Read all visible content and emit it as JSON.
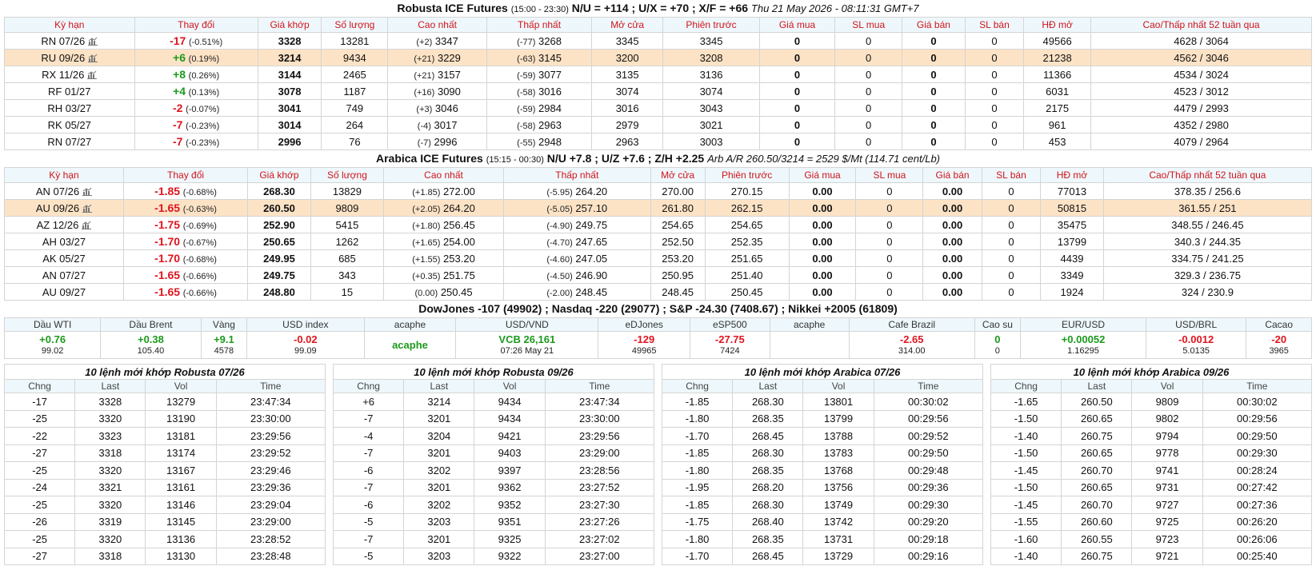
{
  "robusta": {
    "title": "Robusta ICE Futures",
    "hours": "(15:00 - 23:30)",
    "spreads": "N/U = +114 ; U/X = +70 ; X/F = +66",
    "timestamp": "Thu 21 May 2026 - 08:11:31 GMT+7",
    "headers": [
      "Kỳ hạn",
      "Thay đổi",
      "Giá khớp",
      "Số lượng",
      "Cao nhất",
      "Thấp nhất",
      "Mở cửa",
      "Phiên trước",
      "Giá mua",
      "SL mua",
      "Giá bán",
      "SL bán",
      "HĐ mở",
      "Cao/Thấp nhất 52 tuần qua"
    ],
    "rows": [
      [
        "RN 07/26",
        "-17",
        "(-0.51%)",
        "3328",
        "13281",
        "(+2)",
        "3347",
        "(-77)",
        "3268",
        "3345",
        "3345",
        "0",
        "0",
        "0",
        "0",
        "49566",
        "4628 / 3064"
      ],
      [
        "RU 09/26",
        "+6",
        "(0.19%)",
        "3214",
        "9434",
        "(+21)",
        "3229",
        "(-63)",
        "3145",
        "3200",
        "3208",
        "0",
        "0",
        "0",
        "0",
        "21238",
        "4562 / 3046"
      ],
      [
        "RX 11/26",
        "+8",
        "(0.26%)",
        "3144",
        "2465",
        "(+21)",
        "3157",
        "(-59)",
        "3077",
        "3135",
        "3136",
        "0",
        "0",
        "0",
        "0",
        "11366",
        "4534 / 3024"
      ],
      [
        "RF 01/27",
        "+4",
        "(0.13%)",
        "3078",
        "1187",
        "(+16)",
        "3090",
        "(-58)",
        "3016",
        "3074",
        "3074",
        "0",
        "0",
        "0",
        "0",
        "6031",
        "4523 / 3012"
      ],
      [
        "RH 03/27",
        "-2",
        "(-0.07%)",
        "3041",
        "749",
        "(+3)",
        "3046",
        "(-59)",
        "2984",
        "3016",
        "3043",
        "0",
        "0",
        "0",
        "0",
        "2175",
        "4479 / 2993"
      ],
      [
        "RK 05/27",
        "-7",
        "(-0.23%)",
        "3014",
        "264",
        "(-4)",
        "3017",
        "(-58)",
        "2963",
        "2979",
        "3021",
        "0",
        "0",
        "0",
        "0",
        "961",
        "4352 / 2980"
      ],
      [
        "RN 07/27",
        "-7",
        "(-0.23%)",
        "2996",
        "76",
        "(-7)",
        "2996",
        "(-55)",
        "2948",
        "2963",
        "3003",
        "0",
        "0",
        "0",
        "0",
        "453",
        "4079 / 2964"
      ]
    ],
    "highlight_row": 1,
    "icon_rows": [
      0,
      1,
      2
    ]
  },
  "arabica": {
    "title": "Arabica ICE Futures",
    "hours": "(15:15 - 00:30)",
    "spreads": "N/U +7.8 ; U/Z +7.6 ; Z/H +2.25",
    "arb": "Arb A/R 260.50/3214 = 2529 $/Mt (114.71 cent/Lb)",
    "headers": [
      "Kỳ hạn",
      "Thay đổi",
      "Giá khớp",
      "Số lượng",
      "Cao nhất",
      "Thấp nhất",
      "Mở cửa",
      "Phiên trước",
      "Giá mua",
      "SL mua",
      "Giá bán",
      "SL bán",
      "HĐ mở",
      "Cao/Thấp nhất 52 tuần qua"
    ],
    "rows": [
      [
        "AN 07/26",
        "-1.85",
        "(-0.68%)",
        "268.30",
        "13829",
        "(+1.85)",
        "272.00",
        "(-5.95)",
        "264.20",
        "270.00",
        "270.15",
        "0.00",
        "0",
        "0.00",
        "0",
        "77013",
        "378.35 / 256.6"
      ],
      [
        "AU 09/26",
        "-1.65",
        "(-0.63%)",
        "260.50",
        "9809",
        "(+2.05)",
        "264.20",
        "(-5.05)",
        "257.10",
        "261.80",
        "262.15",
        "0.00",
        "0",
        "0.00",
        "0",
        "50815",
        "361.55 / 251"
      ],
      [
        "AZ 12/26",
        "-1.75",
        "(-0.69%)",
        "252.90",
        "5415",
        "(+1.80)",
        "256.45",
        "(-4.90)",
        "249.75",
        "254.65",
        "254.65",
        "0.00",
        "0",
        "0.00",
        "0",
        "35475",
        "348.55 / 246.45"
      ],
      [
        "AH 03/27",
        "-1.70",
        "(-0.67%)",
        "250.65",
        "1262",
        "(+1.65)",
        "254.00",
        "(-4.70)",
        "247.65",
        "252.50",
        "252.35",
        "0.00",
        "0",
        "0.00",
        "0",
        "13799",
        "340.3 / 244.35"
      ],
      [
        "AK 05/27",
        "-1.70",
        "(-0.68%)",
        "249.95",
        "685",
        "(+1.55)",
        "253.20",
        "(-4.60)",
        "247.05",
        "253.20",
        "251.65",
        "0.00",
        "0",
        "0.00",
        "0",
        "4439",
        "334.75 / 241.25"
      ],
      [
        "AN 07/27",
        "-1.65",
        "(-0.66%)",
        "249.75",
        "343",
        "(+0.35)",
        "251.75",
        "(-4.50)",
        "246.90",
        "250.95",
        "251.40",
        "0.00",
        "0",
        "0.00",
        "0",
        "3349",
        "329.3 / 236.75"
      ],
      [
        "AU 09/27",
        "-1.65",
        "(-0.66%)",
        "248.80",
        "15",
        "(0.00)",
        "250.45",
        "(-2.00)",
        "248.45",
        "248.45",
        "250.45",
        "0.00",
        "0",
        "0.00",
        "0",
        "1924",
        "324 / 230.9"
      ]
    ],
    "highlight_row": 1,
    "icon_rows": [
      0,
      1,
      2
    ]
  },
  "indices": "DowJones -107 (49902) ; Nasdaq -220 (29077) ; S&P -24.30 (7408.67) ; Nikkei +2005 (61809)",
  "markets": [
    {
      "label": "Dầu WTI",
      "main": "+0.76",
      "sub": "99.02"
    },
    {
      "label": "Dầu Brent",
      "main": "+0.38",
      "sub": "105.40"
    },
    {
      "label": "Vàng",
      "main": "+9.1",
      "sub": "4578"
    },
    {
      "label": "USD index",
      "main": "-0.02",
      "sub": "99.09"
    },
    {
      "label": "acaphe",
      "main": "acaphe"
    },
    {
      "label": "USD/VND",
      "main": "VCB 26,161",
      "sub": "07:26 May 21"
    },
    {
      "label": "eDJones",
      "main": "-129",
      "sub": "49965"
    },
    {
      "label": "eSP500",
      "main": "-27.75",
      "sub": "7424"
    },
    {
      "label": "acaphe"
    },
    {
      "label": "Cafe Brazil",
      "main": "-2.65",
      "sub": "314.00"
    },
    {
      "label": "Cao su",
      "main": "0",
      "sub": "0"
    },
    {
      "label": "EUR/USD",
      "main": "+0.00052",
      "sub": "1.16295"
    },
    {
      "label": "USD/BRL",
      "main": "-0.0012",
      "sub": "5.0135"
    },
    {
      "label": "Cacao",
      "main": "-20",
      "sub": "3965"
    }
  ],
  "trades": [
    {
      "title": "10 lệnh mới khớp Robusta 07/26",
      "headers": [
        "Chng",
        "Last",
        "Vol",
        "Time"
      ],
      "rows": [
        [
          "-17",
          "3328",
          "13279",
          "23:47:34"
        ],
        [
          "-25",
          "3320",
          "13190",
          "23:30:00"
        ],
        [
          "-22",
          "3323",
          "13181",
          "23:29:56"
        ],
        [
          "-27",
          "3318",
          "13174",
          "23:29:52"
        ],
        [
          "-25",
          "3320",
          "13167",
          "23:29:46"
        ],
        [
          "-24",
          "3321",
          "13161",
          "23:29:36"
        ],
        [
          "-25",
          "3320",
          "13146",
          "23:29:04"
        ],
        [
          "-26",
          "3319",
          "13145",
          "23:29:00"
        ],
        [
          "-25",
          "3320",
          "13136",
          "23:28:52"
        ],
        [
          "-27",
          "3318",
          "13130",
          "23:28:48"
        ]
      ]
    },
    {
      "title": "10 lệnh mới khớp Robusta 09/26",
      "headers": [
        "Chng",
        "Last",
        "Vol",
        "Time"
      ],
      "rows": [
        [
          "+6",
          "3214",
          "9434",
          "23:47:34"
        ],
        [
          "-7",
          "3201",
          "9434",
          "23:30:00"
        ],
        [
          "-4",
          "3204",
          "9421",
          "23:29:56"
        ],
        [
          "-7",
          "3201",
          "9403",
          "23:29:00"
        ],
        [
          "-6",
          "3202",
          "9397",
          "23:28:56"
        ],
        [
          "-7",
          "3201",
          "9362",
          "23:27:52"
        ],
        [
          "-6",
          "3202",
          "9352",
          "23:27:30"
        ],
        [
          "-5",
          "3203",
          "9351",
          "23:27:26"
        ],
        [
          "-7",
          "3201",
          "9325",
          "23:27:02"
        ],
        [
          "-5",
          "3203",
          "9322",
          "23:27:00"
        ]
      ]
    },
    {
      "title": "10 lệnh mới khớp Arabica 07/26",
      "headers": [
        "Chng",
        "Last",
        "Vol",
        "Time"
      ],
      "rows": [
        [
          "-1.85",
          "268.30",
          "13801",
          "00:30:02"
        ],
        [
          "-1.80",
          "268.35",
          "13799",
          "00:29:56"
        ],
        [
          "-1.70",
          "268.45",
          "13788",
          "00:29:52"
        ],
        [
          "-1.85",
          "268.30",
          "13783",
          "00:29:50"
        ],
        [
          "-1.80",
          "268.35",
          "13768",
          "00:29:48"
        ],
        [
          "-1.95",
          "268.20",
          "13756",
          "00:29:36"
        ],
        [
          "-1.85",
          "268.30",
          "13749",
          "00:29:30"
        ],
        [
          "-1.75",
          "268.40",
          "13742",
          "00:29:20"
        ],
        [
          "-1.80",
          "268.35",
          "13731",
          "00:29:18"
        ],
        [
          "-1.70",
          "268.45",
          "13729",
          "00:29:16"
        ]
      ]
    },
    {
      "title": "10 lệnh mới khớp Arabica 09/26",
      "headers": [
        "Chng",
        "Last",
        "Vol",
        "Time"
      ],
      "rows": [
        [
          "-1.65",
          "260.50",
          "9809",
          "00:30:02"
        ],
        [
          "-1.50",
          "260.65",
          "9802",
          "00:29:56"
        ],
        [
          "-1.40",
          "260.75",
          "9794",
          "00:29:50"
        ],
        [
          "-1.50",
          "260.65",
          "9778",
          "00:29:30"
        ],
        [
          "-1.45",
          "260.70",
          "9741",
          "00:28:24"
        ],
        [
          "-1.50",
          "260.65",
          "9731",
          "00:27:42"
        ],
        [
          "-1.45",
          "260.70",
          "9727",
          "00:27:36"
        ],
        [
          "-1.55",
          "260.60",
          "9725",
          "00:26:20"
        ],
        [
          "-1.60",
          "260.55",
          "9723",
          "00:26:06"
        ],
        [
          "-1.40",
          "260.75",
          "9721",
          "00:25:40"
        ]
      ]
    }
  ]
}
